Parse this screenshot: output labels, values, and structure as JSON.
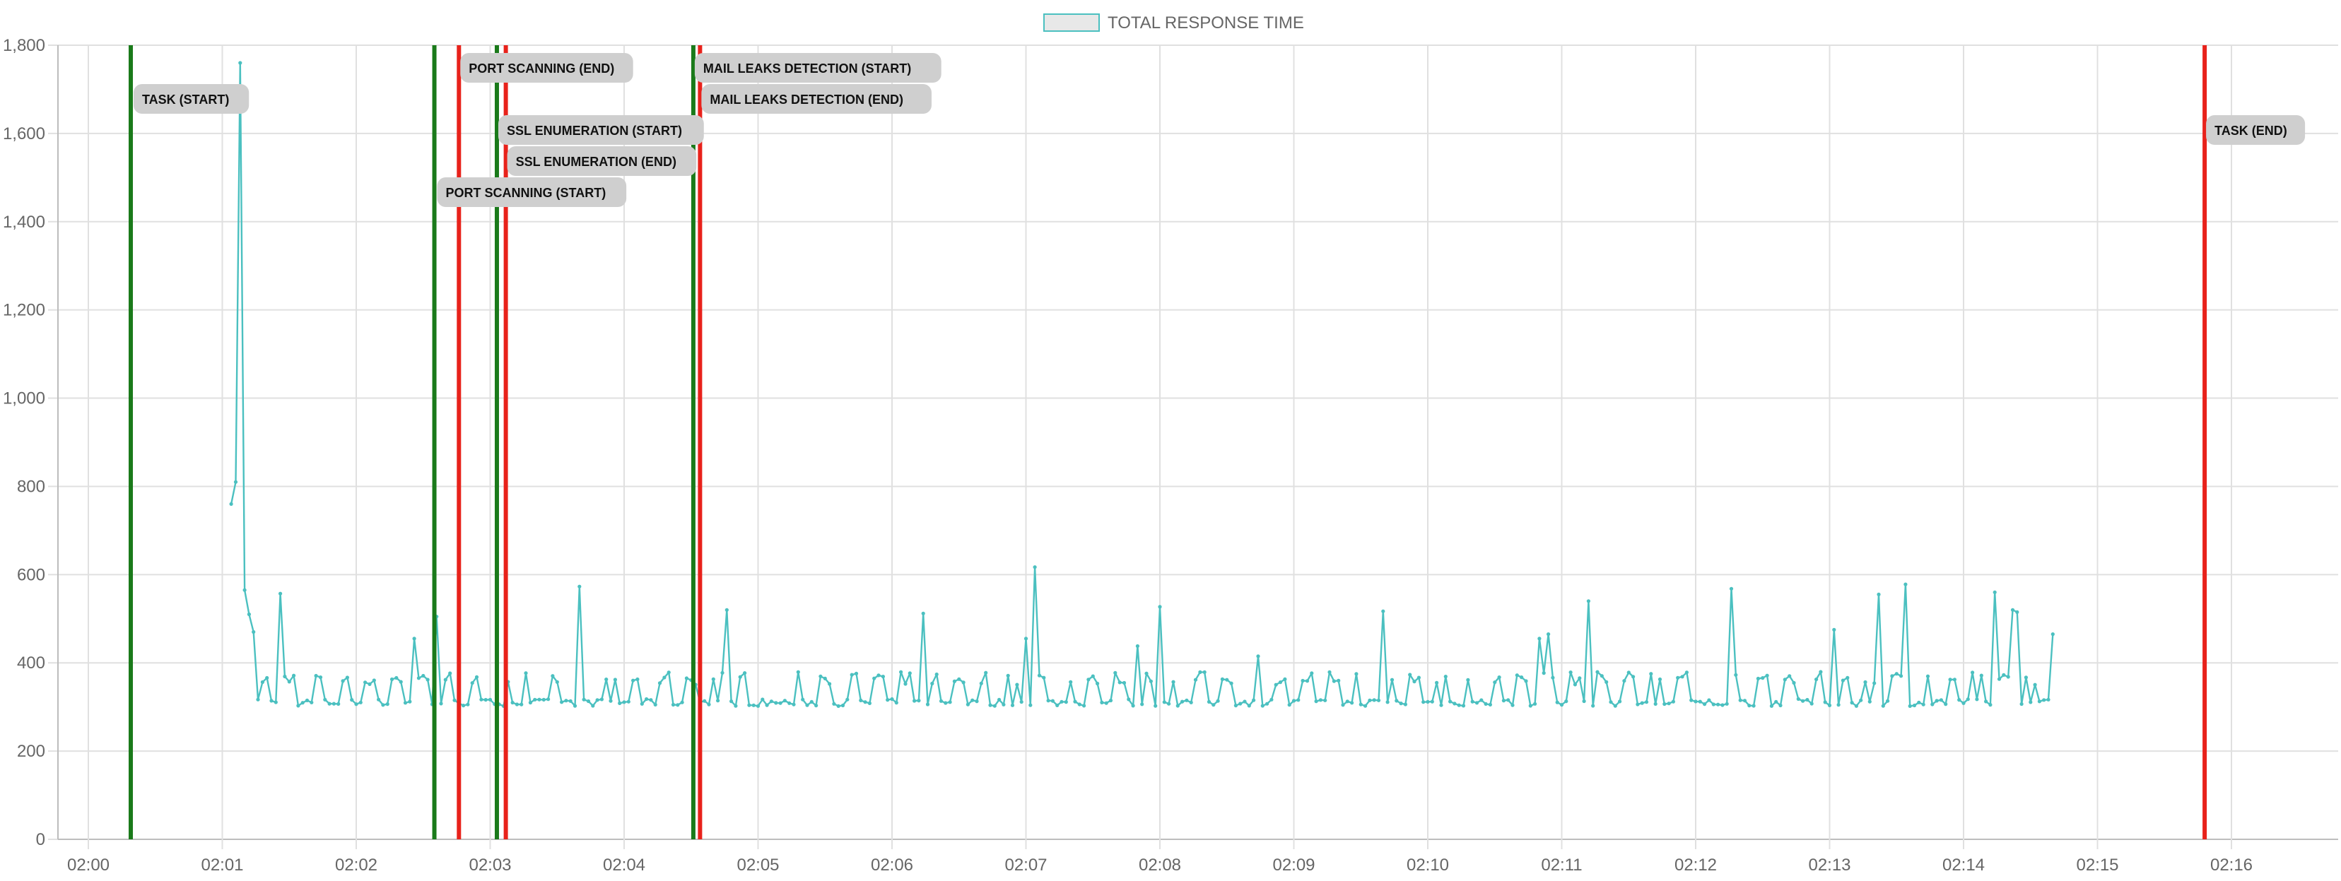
{
  "chart_data": {
    "type": "line",
    "legend": {
      "label": "TOTAL RESPONSE TIME",
      "placement": "top-center"
    },
    "colors": {
      "series": "#4bc0c0",
      "legend_fill": "#e8e8e8",
      "start_marker": "#1a7a1a",
      "end_marker": "#e8221b",
      "grid": "#e0e0e0",
      "label_bg": "#cfcfcf"
    },
    "grid": true,
    "x_axis": {
      "min": "02:00",
      "max": "02:16",
      "ticks": [
        "02:00",
        "02:01",
        "02:02",
        "02:03",
        "02:04",
        "02:05",
        "02:06",
        "02:07",
        "02:08",
        "02:09",
        "02:10",
        "02:11",
        "02:12",
        "02:13",
        "02:14",
        "02:15",
        "02:16"
      ]
    },
    "y_axis": {
      "min": 0,
      "max": 1800,
      "ticks": [
        "0",
        "200",
        "400",
        "600",
        "800",
        "1,000",
        "1,200",
        "1,400",
        "1,600",
        "1,800"
      ]
    },
    "events": [
      {
        "label": "TASK (START)",
        "time": "02:00:19",
        "kind": "start"
      },
      {
        "label": "PORT SCANNING (START)",
        "time": "02:02:35",
        "kind": "start"
      },
      {
        "label": "PORT SCANNING (END)",
        "time": "02:02:46",
        "kind": "end"
      },
      {
        "label": "SSL ENUMERATION (START)",
        "time": "02:03:03",
        "kind": "start"
      },
      {
        "label": "SSL ENUMERATION (END)",
        "time": "02:03:07",
        "kind": "end"
      },
      {
        "label": "MAIL LEAKS DETECTION (START)",
        "time": "02:04:31",
        "kind": "start"
      },
      {
        "label": "MAIL LEAKS DETECTION (END)",
        "time": "02:04:34",
        "kind": "end"
      },
      {
        "label": "TASK (END)",
        "time": "02:15:48",
        "kind": "end"
      }
    ],
    "series": [
      {
        "start_time": "02:01:04",
        "end_time": "02:14:40",
        "baseline": 310,
        "pulse_level": 365,
        "spikes": [
          {
            "time": "02:01:04",
            "value": 760
          },
          {
            "time": "02:01:06",
            "value": 810
          },
          {
            "time": "02:01:08",
            "value": 1760
          },
          {
            "time": "02:01:09",
            "value": 300
          },
          {
            "time": "02:01:11",
            "value": 565
          },
          {
            "time": "02:01:13",
            "value": 510
          },
          {
            "time": "02:01:15",
            "value": 470
          },
          {
            "time": "02:01:26",
            "value": 557
          },
          {
            "time": "02:02:27",
            "value": 455
          },
          {
            "time": "02:02:36",
            "value": 505
          },
          {
            "time": "02:03:41",
            "value": 573
          },
          {
            "time": "02:04:46",
            "value": 520
          },
          {
            "time": "02:06:15",
            "value": 512
          },
          {
            "time": "02:07:00",
            "value": 455
          },
          {
            "time": "02:07:05",
            "value": 617
          },
          {
            "time": "02:07:50",
            "value": 438
          },
          {
            "time": "02:08:00",
            "value": 527
          },
          {
            "time": "02:08:45",
            "value": 415
          },
          {
            "time": "02:09:40",
            "value": 517
          },
          {
            "time": "02:10:50",
            "value": 455
          },
          {
            "time": "02:10:55",
            "value": 465
          },
          {
            "time": "02:11:12",
            "value": 540
          },
          {
            "time": "02:12:17",
            "value": 568
          },
          {
            "time": "02:13:03",
            "value": 475
          },
          {
            "time": "02:13:22",
            "value": 555
          },
          {
            "time": "02:13:35",
            "value": 578
          },
          {
            "time": "02:14:15",
            "value": 560
          },
          {
            "time": "02:14:23",
            "value": 520
          },
          {
            "time": "02:14:25",
            "value": 515
          },
          {
            "time": "02:14:40",
            "value": 465
          }
        ]
      }
    ]
  }
}
